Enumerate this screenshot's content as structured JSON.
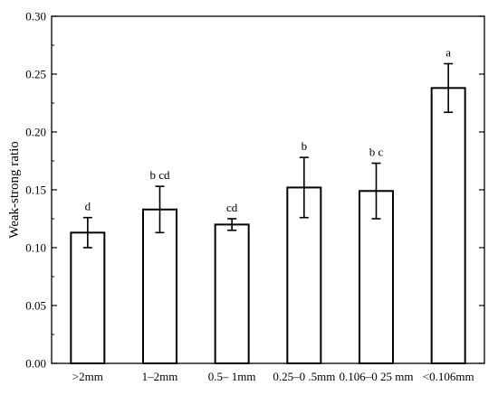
{
  "chart_data": {
    "type": "bar",
    "title": "",
    "xlabel": "",
    "ylabel": "Weak-strong ratio",
    "ylim": [
      0.0,
      0.3
    ],
    "yticks": [
      "0.00",
      "0.05",
      "0.10",
      "0.15",
      "0.20",
      "0.25",
      "0.30"
    ],
    "grid": false,
    "legend": "none",
    "categories": [
      ">2mm",
      "1–2mm",
      "0.5– 1mm",
      "0.25–0 .5mm",
      "0.106–0 25 mm",
      "<0.106mm"
    ],
    "values": [
      0.113,
      0.133,
      0.12,
      0.152,
      0.149,
      0.238
    ],
    "error": [
      0.013,
      0.02,
      0.005,
      0.026,
      0.024,
      0.021
    ],
    "significance_letters": [
      "d",
      "b cd",
      "cd",
      "b",
      "b c",
      "a"
    ],
    "colors": {
      "bar_fill": "#ffffff",
      "bar_stroke": "#000000",
      "axis": "#000000"
    }
  }
}
